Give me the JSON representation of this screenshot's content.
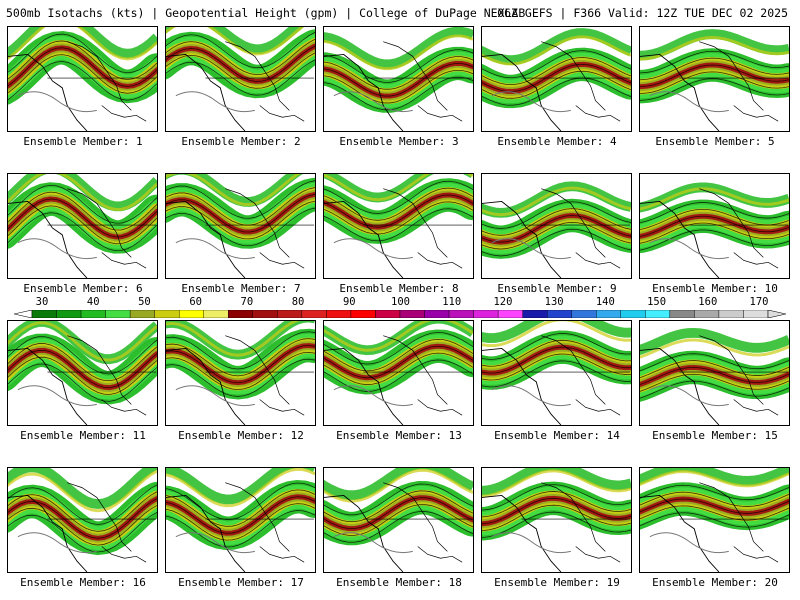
{
  "header": {
    "title": "500mb Isotachs (kts) | Geopotential Height (gpm) | College of DuPage NEXLAB",
    "run_info": "06Z GEFS | F366 Valid: 12Z TUE DEC 02 2025"
  },
  "members": [
    {
      "label": "Ensemble Member: 1"
    },
    {
      "label": "Ensemble Member: 2"
    },
    {
      "label": "Ensemble Member: 3"
    },
    {
      "label": "Ensemble Member: 4"
    },
    {
      "label": "Ensemble Member: 5"
    },
    {
      "label": "Ensemble Member: 6"
    },
    {
      "label": "Ensemble Member: 7"
    },
    {
      "label": "Ensemble Member: 8"
    },
    {
      "label": "Ensemble Member: 9"
    },
    {
      "label": "Ensemble Member: 10"
    },
    {
      "label": "Ensemble Member: 11"
    },
    {
      "label": "Ensemble Member: 12"
    },
    {
      "label": "Ensemble Member: 13"
    },
    {
      "label": "Ensemble Member: 14"
    },
    {
      "label": "Ensemble Member: 15"
    },
    {
      "label": "Ensemble Member: 16"
    },
    {
      "label": "Ensemble Member: 17"
    },
    {
      "label": "Ensemble Member: 18"
    },
    {
      "label": "Ensemble Member: 19"
    },
    {
      "label": "Ensemble Member: 20"
    }
  ],
  "colorbar": {
    "tick_labels": [
      "30",
      "40",
      "50",
      "60",
      "70",
      "80",
      "90",
      "100",
      "110",
      "120",
      "130",
      "140",
      "150",
      "160",
      "170"
    ],
    "colors": [
      "#0a7a0a",
      "#119911",
      "#22bb22",
      "#44dd44",
      "#99aa22",
      "#cccc11",
      "#ffff00",
      "#eeee66",
      "#8b0000",
      "#a01010",
      "#bb1a1a",
      "#dd2222",
      "#ee1111",
      "#ff0000",
      "#cc0044",
      "#aa0077",
      "#9900aa",
      "#bb11bb",
      "#dd22dd",
      "#ff44ff",
      "#1a1aaa",
      "#2244cc",
      "#3377dd",
      "#33aaee",
      "#22ccee",
      "#44eeff",
      "#888888",
      "#aaaaaa",
      "#cccccc",
      "#dddddd"
    ]
  }
}
